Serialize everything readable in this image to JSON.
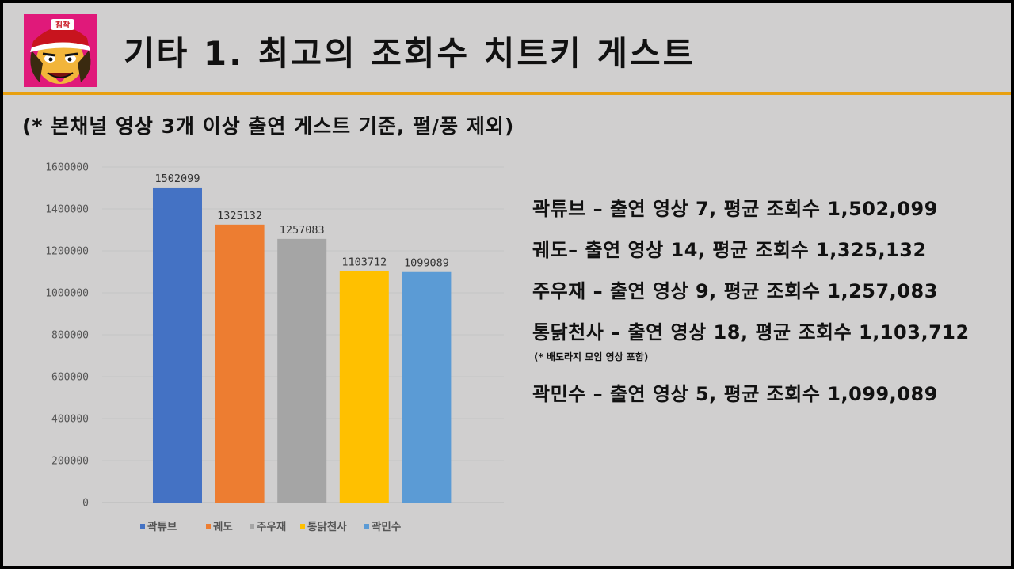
{
  "slide": {
    "title": "기타 1. 최고의 조회수 치트키 게스트",
    "subtitle": "(* 본채널 영상 3개 이상 출연 게스트 기준, 펄/풍 제외)",
    "logo_text": "침착"
  },
  "stats": [
    "곽튜브 – 출연 영상 7, 평균 조회수 1,502,099",
    "궤도– 출연 영상 14, 평균 조회수 1,325,132",
    "주우재 – 출연 영상 9, 평균 조회수 1,257,083",
    "통닭천사 – 출연 영상 18, 평균 조회수 1,103,712",
    "곽민수 – 출연 영상 5, 평균 조회수 1,099,089"
  ],
  "stats_note": "(* 배도라지 모임 영상 포함)",
  "chart_data": {
    "type": "bar",
    "categories": [
      "곽튜브",
      "궤도",
      "주우재",
      "통닭천사",
      "곽민수"
    ],
    "values": [
      1502099,
      1325132,
      1257083,
      1103712,
      1099089
    ],
    "colors": [
      "#4472c4",
      "#ed7d31",
      "#a5a5a5",
      "#ffc000",
      "#5b9bd5"
    ],
    "ylim": [
      0,
      1600000
    ],
    "yticks": [
      0,
      200000,
      400000,
      600000,
      800000,
      1000000,
      1200000,
      1400000,
      1600000
    ],
    "grid": true,
    "legend": "bottom",
    "data_labels": true
  }
}
